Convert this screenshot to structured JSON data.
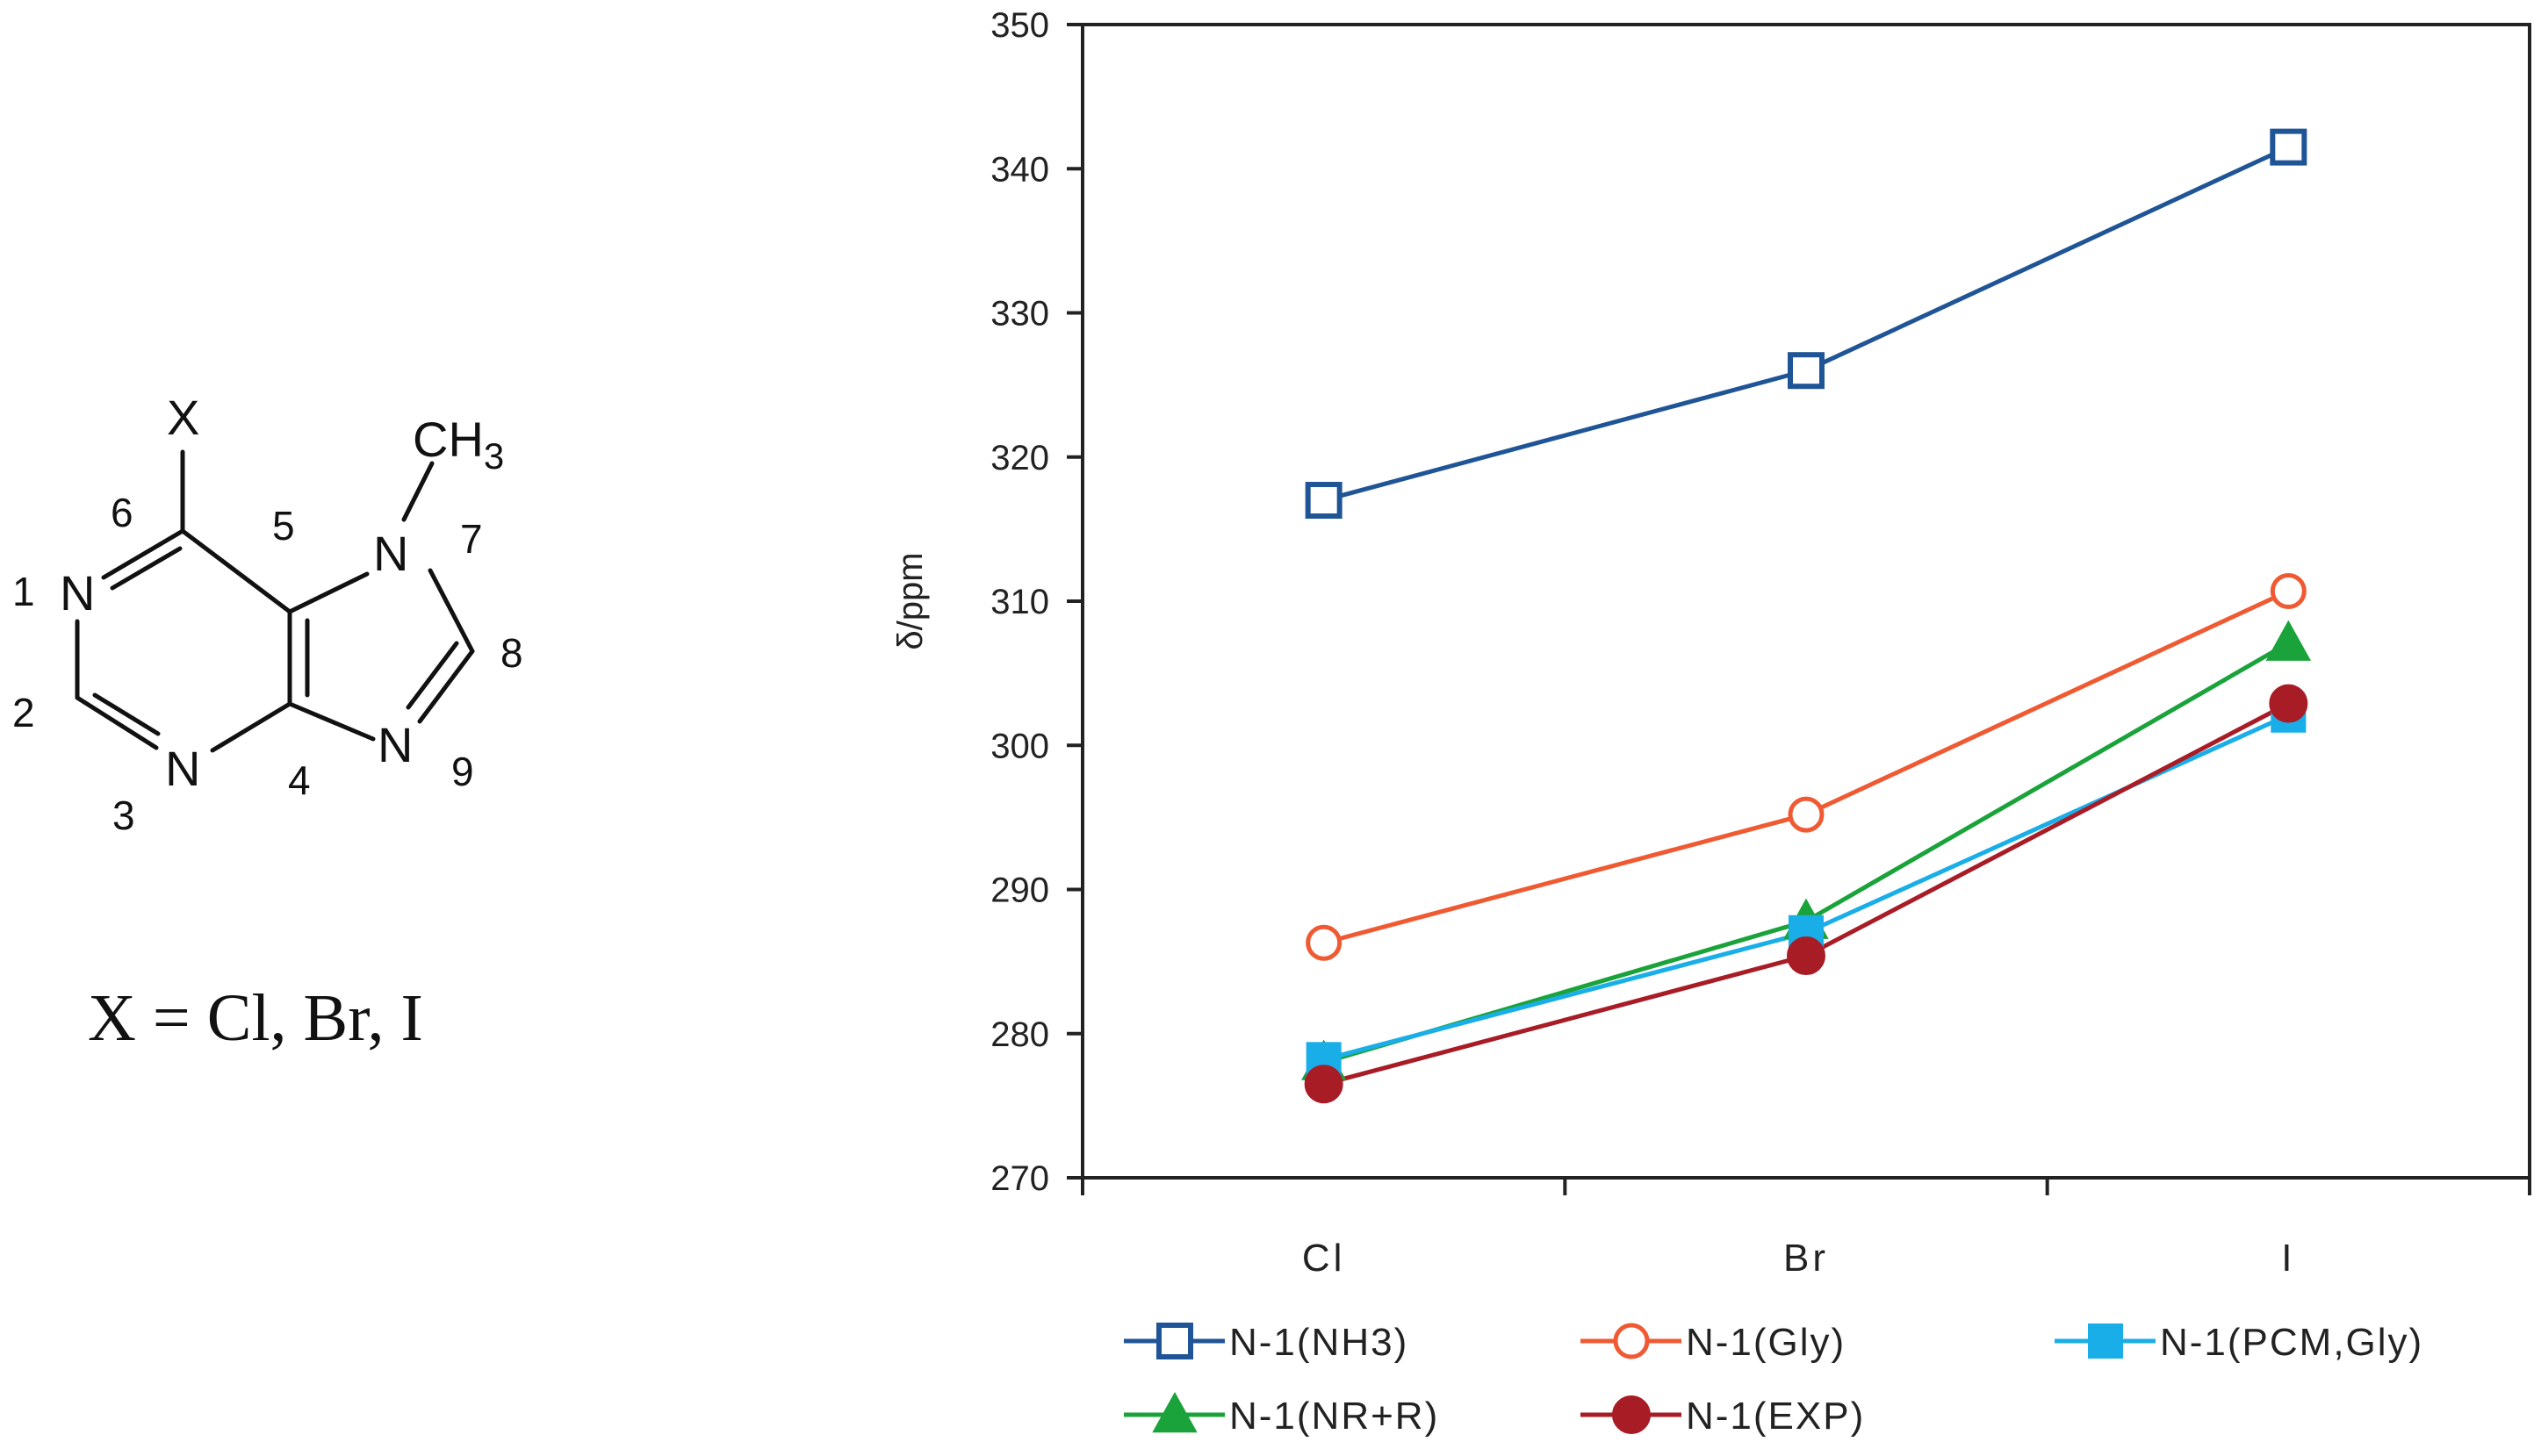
{
  "structure": {
    "substituent": "X",
    "methyl": "CH",
    "methyl_subscript": "3",
    "atoms": [
      "N",
      "N",
      "N",
      "N"
    ],
    "numbers": [
      "1",
      "2",
      "3",
      "4",
      "5",
      "6",
      "7",
      "8",
      "9"
    ],
    "caption": "X = Cl, Br, I"
  },
  "colors": {
    "NH3": "#1f5596",
    "Gly": "#f05a32",
    "PCM": "#19aee8",
    "NR": "#1aa33a",
    "EXP": "#a81c26",
    "axis": "#222222"
  },
  "chart_data": {
    "type": "line",
    "title": "",
    "xlabel": "",
    "ylabel": "δ/ppm",
    "categories": [
      "Cl",
      "Br",
      "I"
    ],
    "ylim": [
      270,
      350
    ],
    "yticks": [
      "270",
      "280",
      "290",
      "300",
      "310",
      "320",
      "330",
      "340",
      "350"
    ],
    "grid": false,
    "legend_position": "bottom",
    "series": [
      {
        "name": "N-1(NH3)",
        "values": [
          317,
          326,
          341.5
        ],
        "marker": "square-open",
        "colorKey": "NH3"
      },
      {
        "name": "N-1(Gly)",
        "values": [
          286.3,
          295.2,
          310.7
        ],
        "marker": "circle-open",
        "colorKey": "Gly"
      },
      {
        "name": "N-1(PCM,Gly)",
        "values": [
          278.2,
          287,
          302.1
        ],
        "marker": "square-filled",
        "colorKey": "PCM"
      },
      {
        "name": "N-1(NR+R)",
        "values": [
          278,
          287.8,
          307.1
        ],
        "marker": "triangle-filled",
        "colorKey": "NR"
      },
      {
        "name": "N-1(EXP)",
        "values": [
          276.5,
          285.4,
          302.9
        ],
        "marker": "circle-filled",
        "colorKey": "EXP"
      }
    ]
  }
}
